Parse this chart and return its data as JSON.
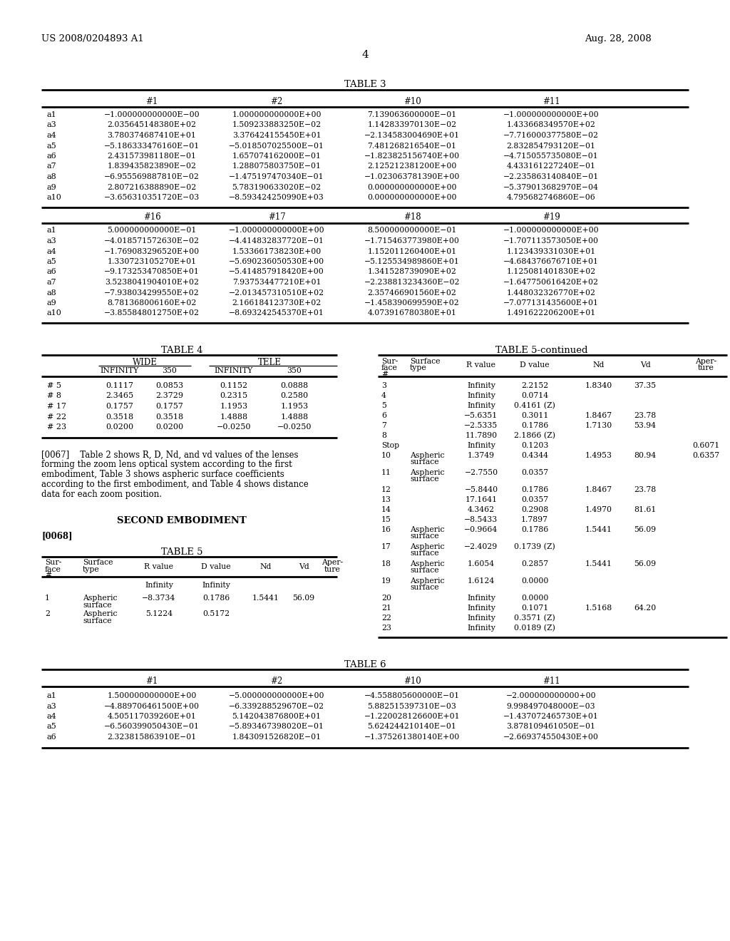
{
  "header_left": "US 2008/0204893 A1",
  "header_right": "Aug. 28, 2008",
  "page_number": "4",
  "bg_color": "#ffffff",
  "text_color": "#000000",
  "table3_title": "TABLE 3",
  "table3_cols": [
    "",
    "#1",
    "#2",
    "#10",
    "#11"
  ],
  "table3_rows1": [
    [
      "a1",
      "−1.000000000000E−00",
      "1.000000000000E+00",
      "7.139063600000E−01",
      "−1.000000000000E+00"
    ],
    [
      "a3",
      "2.035645148380E+02",
      "1.509233883250E−02",
      "1.142833970130E−02",
      "1.433668349570E+02"
    ],
    [
      "a4",
      "3.780374687410E+01",
      "3.376424155450E+01",
      "−2.134583004690E+01",
      "−7.716000377580E−02"
    ],
    [
      "a5",
      "−5.186333476160E−01",
      "−5.018507025500E−01",
      "7.481268216540E−01",
      "2.832854793120E−01"
    ],
    [
      "a6",
      "2.431573981180E−01",
      "1.657074162000E−01",
      "−1.823825156740E+00",
      "−4.715055735080E−01"
    ],
    [
      "a7",
      "1.839435823890E−02",
      "1.288075803750E−01",
      "2.125212381200E+00",
      "4.433161227240E−01"
    ],
    [
      "a8",
      "−6.955569887810E−02",
      "−1.475197470340E−01",
      "−1.023063781390E+00",
      "−2.235863140840E−01"
    ],
    [
      "a9",
      "2.807216388890E−02",
      "5.783190633020E−02",
      "0.000000000000E+00",
      "−5.379013682970E−04"
    ],
    [
      "a10",
      "−3.656310351720E−03",
      "−8.593424250990E+03",
      "0.000000000000E+00",
      "4.795682746860E−06"
    ]
  ],
  "table3_cols2": [
    "",
    "#16",
    "#17",
    "#18",
    "#19"
  ],
  "table3_rows2": [
    [
      "a1",
      "5.000000000000E−01",
      "−1.000000000000E+00",
      "8.500000000000E−01",
      "−1.000000000000E+00"
    ],
    [
      "a3",
      "−4.018571572630E−02",
      "−4.414832837720E−01",
      "−1.715463773980E+00",
      "−1.707113573050E+00"
    ],
    [
      "a4",
      "−1.769083296520E+00",
      "1.533661738230E+00",
      "1.152011260400E+01",
      "1.123439331030E+01"
    ],
    [
      "a5",
      "1.330723105270E+01",
      "−5.690236050530E+00",
      "−5.125534989860E+01",
      "−4.684376676710E+01"
    ],
    [
      "a6",
      "−9.173253470850E+01",
      "−5.414857918420E+00",
      "1.341528739090E+02",
      "1.125081401830E+02"
    ],
    [
      "a7",
      "3.5238041904010E+02",
      "7.937534477210E+01",
      "−2.238813234360E−02",
      "−1.647750616420E+02"
    ],
    [
      "a8",
      "−7.938034299550E+02",
      "−2.013457310510E+02",
      "2.357466901560E+02",
      "1.448032326770E+02"
    ],
    [
      "a9",
      "8.781368006160E+02",
      "2.166184123730E+02",
      "−1.458390699590E+02",
      "−7.077131435600E+01"
    ],
    [
      "a10",
      "−3.855848012750E+02",
      "−8.693242545370E+01",
      "4.073916780380E+01",
      "1.491622206200E+01"
    ]
  ],
  "table4_title": "TABLE 4",
  "table4_sub1": "WIDE",
  "table4_sub2": "TELE",
  "table4_rows": [
    [
      "# 5",
      "0.1117",
      "0.0853",
      "0.1152",
      "0.0888"
    ],
    [
      "# 8",
      "2.3465",
      "2.3729",
      "0.2315",
      "0.2580"
    ],
    [
      "# 17",
      "0.1757",
      "0.1757",
      "1.1953",
      "1.1953"
    ],
    [
      "# 22",
      "0.3518",
      "0.3518",
      "1.4888",
      "1.4888"
    ],
    [
      "# 23",
      "0.0200",
      "0.0200",
      "−0.0250",
      "−0.0250"
    ]
  ],
  "table5_title": "TABLE 5",
  "table5cont_title": "TABLE 5-continued",
  "table5cont_rows": [
    [
      "3",
      "",
      "Infinity",
      "2.2152",
      "1.8340",
      "37.35",
      "",
      false
    ],
    [
      "4",
      "",
      "Infinity",
      "0.0714",
      "",
      "",
      "",
      false
    ],
    [
      "5",
      "",
      "Infinity",
      "0.4161 (Z)",
      "",
      "",
      "",
      false
    ],
    [
      "6",
      "",
      "−5.6351",
      "0.3011",
      "1.8467",
      "23.78",
      "",
      false
    ],
    [
      "7",
      "",
      "−2.5335",
      "0.1786",
      "1.7130",
      "53.94",
      "",
      false
    ],
    [
      "8",
      "",
      "11.7890",
      "2.1866 (Z)",
      "",
      "",
      "",
      false
    ],
    [
      "Stop",
      "",
      "Infinity",
      "0.1203",
      "",
      "",
      "0.6071",
      false
    ],
    [
      "10",
      "Aspheric surface",
      "1.3749",
      "0.4344",
      "1.4953",
      "80.94",
      "0.6357",
      true
    ],
    [
      "11",
      "Aspheric surface",
      "−2.7550",
      "0.0357",
      "",
      "",
      "",
      true
    ],
    [
      "12",
      "",
      "−5.8440",
      "0.1786",
      "1.8467",
      "23.78",
      "",
      false
    ],
    [
      "13",
      "",
      "17.1641",
      "0.0357",
      "",
      "",
      "",
      false
    ],
    [
      "14",
      "",
      "4.3462",
      "0.2908",
      "1.4970",
      "81.61",
      "",
      false
    ],
    [
      "15",
      "",
      "−8.5433",
      "1.7897",
      "",
      "",
      "",
      false
    ],
    [
      "16",
      "Aspheric surface",
      "−0.9664",
      "0.1786",
      "1.5441",
      "56.09",
      "",
      true
    ],
    [
      "17",
      "Aspheric surface",
      "−2.4029",
      "0.1739 (Z)",
      "",
      "",
      "",
      true
    ],
    [
      "18",
      "Aspheric surface",
      "1.6054",
      "0.2857",
      "1.5441",
      "56.09",
      "",
      true
    ],
    [
      "19",
      "Aspheric surface",
      "1.6124",
      "0.0000",
      "",
      "",
      "",
      true
    ],
    [
      "20",
      "",
      "Infinity",
      "0.0000",
      "",
      "",
      "",
      false
    ],
    [
      "21",
      "",
      "Infinity",
      "0.1071",
      "1.5168",
      "64.20",
      "",
      false
    ],
    [
      "22",
      "",
      "Infinity",
      "0.3571 (Z)",
      "",
      "",
      "",
      false
    ],
    [
      "23",
      "",
      "Infinity",
      "0.0189 (Z)",
      "",
      "",
      "",
      false
    ]
  ],
  "paragraph_lines": [
    "[0067]    Table 2 shows R, D, Nd, and vd values of the lenses",
    "forming the zoom lens optical system according to the first",
    "embodiment, Table 3 shows aspheric surface coefficients",
    "according to the first embodiment, and Table 4 shows distance",
    "data for each zoom position."
  ],
  "second_embodiment": "SECOND EMBODIMENT",
  "para0068": "[0068]",
  "table6_title": "TABLE 6",
  "table6_cols": [
    "",
    "#1",
    "#2",
    "#10",
    "#11"
  ],
  "table6_rows": [
    [
      "a1",
      "1.500000000000E+00",
      "−5.000000000000E+00",
      "−4.558805600000E−01",
      "−2.000000000000+00"
    ],
    [
      "a3",
      "−4.889706461500E+00",
      "−6.339288529670E−02",
      "5.882515397310E−03",
      "9.998497048000E−03"
    ],
    [
      "a4",
      "4.505117039260E+01",
      "5.142043876800E+01",
      "−1.220028126600E+01",
      "−1.437072465730E+01"
    ],
    [
      "a5",
      "−6.560399050430E−01",
      "−5.893467398020E−01",
      "5.624244210140E−01",
      "3.878109461050E−01"
    ],
    [
      "a6",
      "2.323815863910E−01",
      "1.843091526820E−01",
      "−1.375261380140E+00",
      "−2.669374550430E+00"
    ]
  ]
}
